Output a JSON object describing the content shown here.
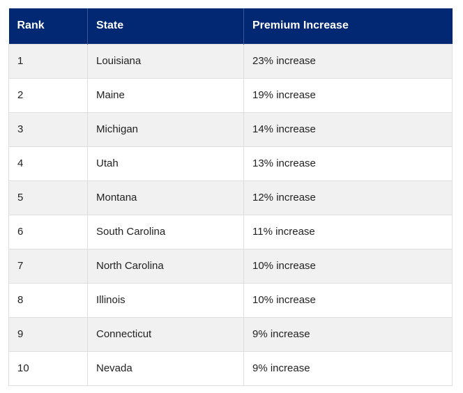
{
  "table": {
    "headers": [
      "Rank",
      "State",
      "Premium Increase"
    ],
    "rows": [
      [
        "1",
        "Louisiana",
        "23% increase"
      ],
      [
        "2",
        "Maine",
        "19% increase"
      ],
      [
        "3",
        "Michigan",
        "14% increase"
      ],
      [
        "4",
        "Utah",
        "13% increase"
      ],
      [
        "5",
        "Montana",
        "12% increase"
      ],
      [
        "6",
        "South Carolina",
        "11% increase"
      ],
      [
        "7",
        "North Carolina",
        "10% increase"
      ],
      [
        "8",
        "Illinois",
        "10% increase"
      ],
      [
        "9",
        "Connecticut",
        "9% increase"
      ],
      [
        "10",
        "Nevada",
        "9% increase"
      ]
    ],
    "colors": {
      "header_bg": "#022874",
      "header_text": "#ffffff",
      "row_alt_bg": "#f1f1f1",
      "border": "#dedede"
    }
  }
}
